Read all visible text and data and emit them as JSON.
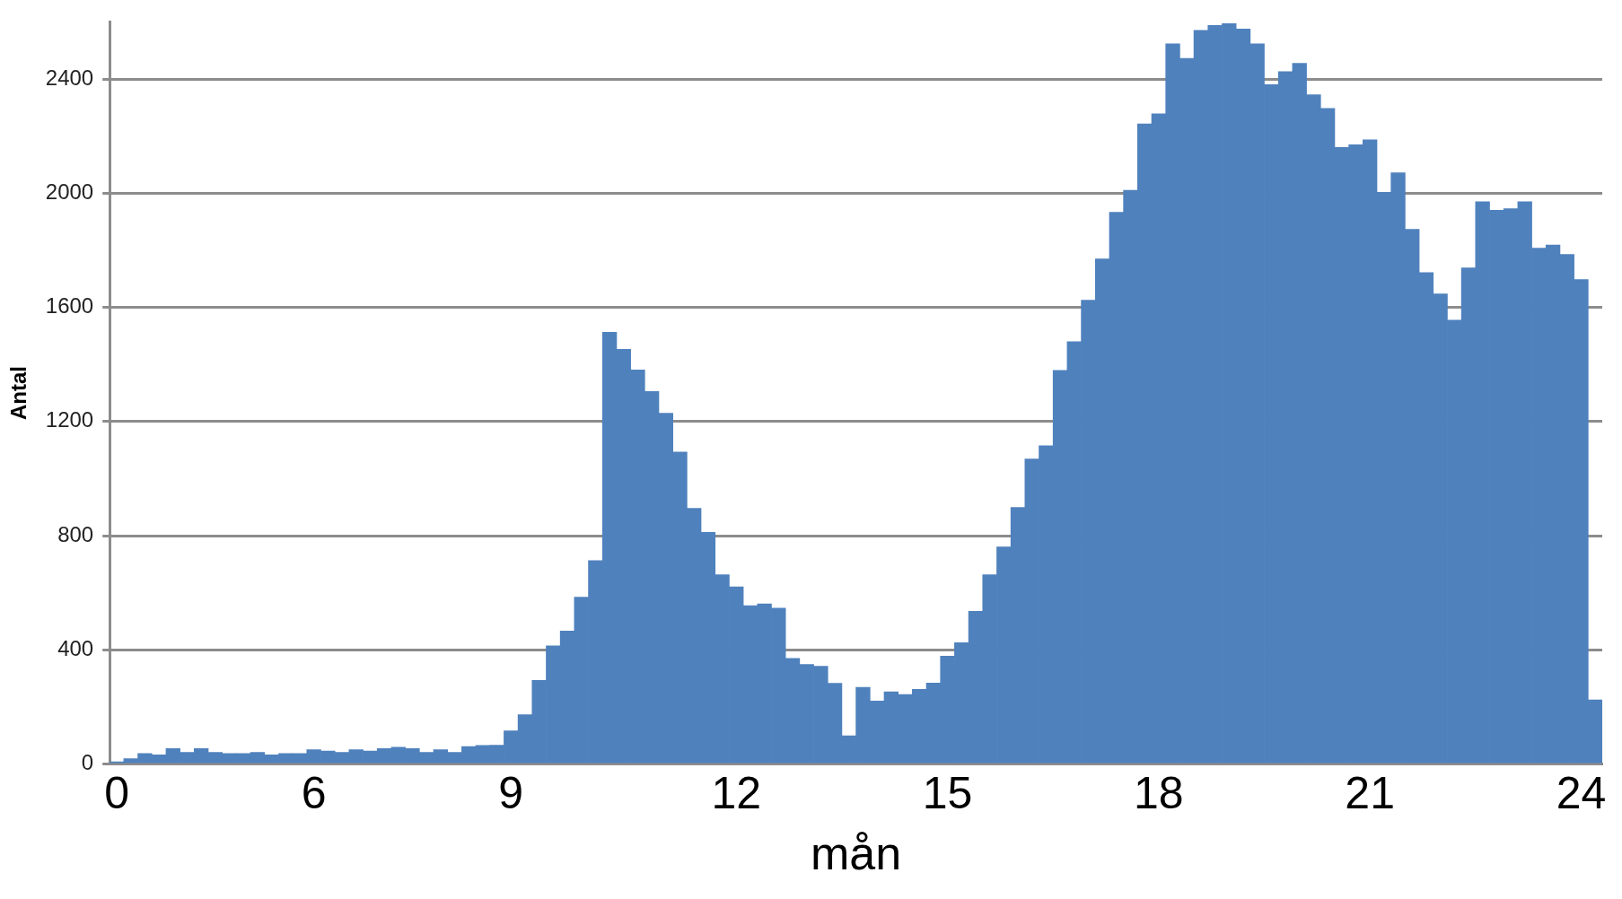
{
  "chart_data": {
    "type": "bar",
    "xlabel": "mån",
    "ylabel": "Antal",
    "categories": [
      "0",
      null,
      null,
      null,
      null,
      null,
      null,
      null,
      null,
      null,
      null,
      null,
      null,
      null,
      "6",
      null,
      null,
      null,
      null,
      null,
      null,
      null,
      null,
      null,
      null,
      null,
      null,
      null,
      "9",
      null,
      null,
      null,
      null,
      null,
      null,
      null,
      null,
      null,
      null,
      null,
      null,
      null,
      null,
      null,
      "12",
      null,
      null,
      null,
      null,
      null,
      null,
      null,
      null,
      null,
      null,
      null,
      null,
      null,
      null,
      "15",
      null,
      null,
      null,
      null,
      null,
      null,
      null,
      null,
      null,
      null,
      null,
      null,
      null,
      null,
      "18",
      null,
      null,
      null,
      null,
      null,
      null,
      null,
      null,
      null,
      null,
      null,
      null,
      null,
      null,
      "21",
      null,
      null,
      null,
      null,
      null,
      null,
      null,
      null,
      null,
      null,
      null,
      null,
      null,
      null,
      "24",
      null
    ],
    "values": [
      8,
      19,
      37,
      32,
      54,
      41,
      54,
      41,
      37,
      37,
      41,
      32,
      37,
      37,
      50,
      46,
      41,
      50,
      46,
      54,
      59,
      54,
      41,
      50,
      41,
      61,
      65,
      66,
      116,
      173,
      293,
      414,
      466,
      585,
      713,
      1513,
      1453,
      1381,
      1305,
      1229,
      1093,
      896,
      812,
      663,
      621,
      555,
      561,
      546,
      370,
      349,
      343,
      283,
      99,
      269,
      221,
      253,
      244,
      262,
      284,
      378,
      425,
      535,
      663,
      761,
      899,
      1069,
      1115,
      1379,
      1480,
      1625,
      1770,
      1933,
      2010,
      2243,
      2278,
      2523,
      2472,
      2570,
      2588,
      2594,
      2575,
      2523,
      2380,
      2426,
      2455,
      2345,
      2297,
      2160,
      2170,
      2187,
      2003,
      2071,
      1873,
      1722,
      1647,
      1555,
      1738,
      1970,
      1940,
      1946,
      1970,
      1807,
      1818,
      1785,
      1697,
      225
    ],
    "color": "#4f81bd",
    "ylim": [
      0,
      2600
    ],
    "yticks": [
      0,
      400,
      800,
      1200,
      1600,
      2000,
      2400
    ],
    "grid": "y",
    "legend": false
  }
}
